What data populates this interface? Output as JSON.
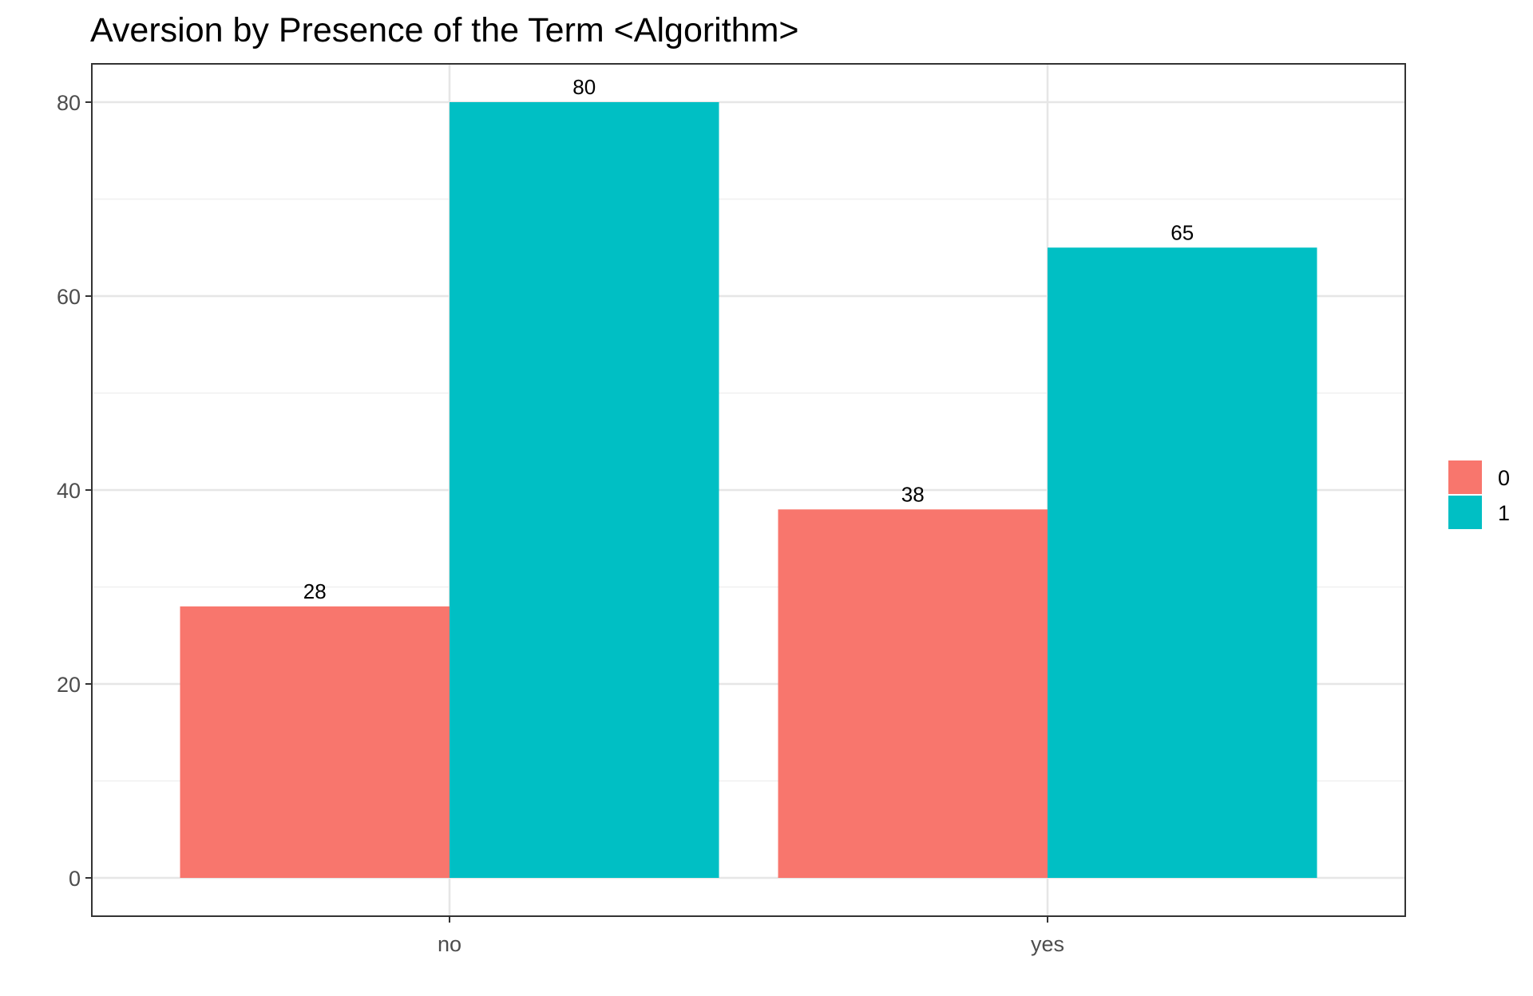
{
  "chart_data": {
    "type": "bar",
    "title": "Aversion by Presence of the Term <Algorithm>",
    "xlabel": "",
    "ylabel": "",
    "categories": [
      "no",
      "yes"
    ],
    "series": [
      {
        "name": "0",
        "values": [
          28,
          38
        ],
        "color": "#F8766D"
      },
      {
        "name": "1",
        "values": [
          80,
          65
        ],
        "color": "#00BFC4"
      }
    ],
    "ylim": [
      0,
      84
    ],
    "yticks": [
      0,
      20,
      40,
      60,
      80
    ],
    "grid": true,
    "legend_position": "right"
  }
}
